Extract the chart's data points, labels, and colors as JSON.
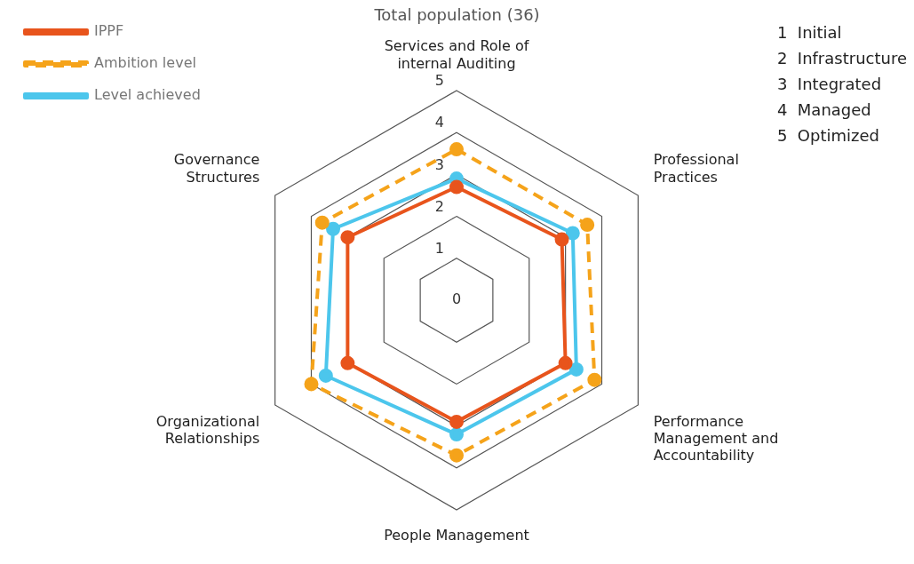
{
  "chart_data": {
    "type": "radar",
    "title": "Total population (36)",
    "categories": [
      "Services and Role of internal Auditing",
      "Professional Practices",
      "Performance Management and Accountability",
      "People Management",
      "Organizational Relationships",
      "Governance Structures"
    ],
    "series": [
      {
        "name": "IPPF",
        "color": "#e8541c",
        "line_style": "solid",
        "values": [
          2.7,
          2.9,
          3.0,
          2.9,
          3.0,
          3.0
        ]
      },
      {
        "name": "Ambition level",
        "color": "#f5a31a",
        "line_style": "dashed",
        "values": [
          3.6,
          3.6,
          3.8,
          3.7,
          4.0,
          3.7
        ]
      },
      {
        "name": "Level achieved",
        "color": "#4cc6ec",
        "line_style": "solid",
        "values": [
          2.9,
          3.2,
          3.3,
          3.2,
          3.6,
          3.4
        ]
      }
    ],
    "ylim": [
      0,
      5
    ],
    "yticks": [
      0,
      1,
      2,
      3,
      4,
      5
    ],
    "grid": true,
    "legend": "top left",
    "marker": "circle",
    "annotations": [
      "1  Initial",
      "2  Infrastructure",
      "3  Integrated",
      "4  Managed",
      "5  Optimized"
    ]
  }
}
